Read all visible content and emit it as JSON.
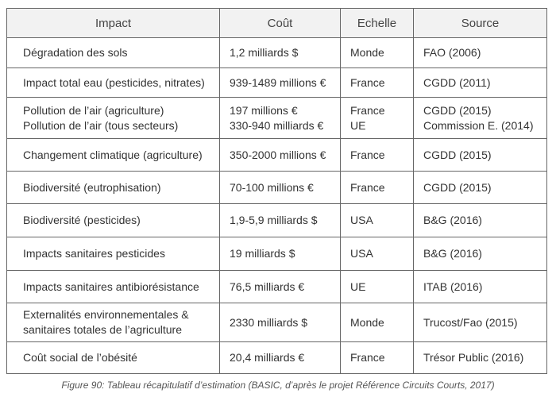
{
  "table": {
    "header": [
      "Impact",
      "Coût",
      "Echelle",
      "Source"
    ],
    "rows": [
      [
        [
          "Dégradation des sols"
        ],
        [
          "1,2 milliards $"
        ],
        [
          "Monde"
        ],
        [
          "FAO (2006)"
        ]
      ],
      [
        [
          "Impact total eau (pesticides, nitrates)"
        ],
        [
          "939-1489 millions €"
        ],
        [
          "France"
        ],
        [
          "CGDD (2011)"
        ]
      ],
      [
        [
          "Pollution de l’air (agriculture)",
          "Pollution de l’air (tous secteurs)"
        ],
        [
          "197 millions €",
          "330-940 milliards €"
        ],
        [
          "France",
          "UE"
        ],
        [
          "CGDD (2015)",
          "Commission E. (2014)"
        ]
      ],
      [
        [
          "Changement climatique (agriculture)"
        ],
        [
          "350-2000 millions €"
        ],
        [
          "France"
        ],
        [
          "CGDD (2015)"
        ]
      ],
      [
        [
          "Biodiversité (eutrophisation)"
        ],
        [
          "70-100 millions €"
        ],
        [
          "France"
        ],
        [
          "CGDD (2015)"
        ]
      ],
      [
        [
          "Biodiversité (pesticides)"
        ],
        [
          "1,9-5,9 milliards $"
        ],
        [
          "USA"
        ],
        [
          "B&G (2016)"
        ]
      ],
      [
        [
          "Impacts sanitaires pesticides"
        ],
        [
          "19 milliards $"
        ],
        [
          "USA"
        ],
        [
          "B&G (2016)"
        ]
      ],
      [
        [
          "Impacts sanitaires antibiorésistance"
        ],
        [
          "76,5 milliards €"
        ],
        [
          "UE"
        ],
        [
          "ITAB (2016)"
        ]
      ],
      [
        [
          "Externalités environnementales &",
          "sanitaires totales de l’agriculture"
        ],
        [
          "2330 milliards $"
        ],
        [
          "Monde"
        ],
        [
          "Trucost/Fao (2015)"
        ]
      ],
      [
        [
          "Coût social de l’obésité"
        ],
        [
          "20,4 milliards €"
        ],
        [
          "France"
        ],
        [
          "Trésor Public (2016)"
        ]
      ]
    ]
  },
  "caption": "Figure 90: Tableau récapitulatif d’estimation (BASIC, d’après le projet Référence Circuits Courts, 2017)"
}
